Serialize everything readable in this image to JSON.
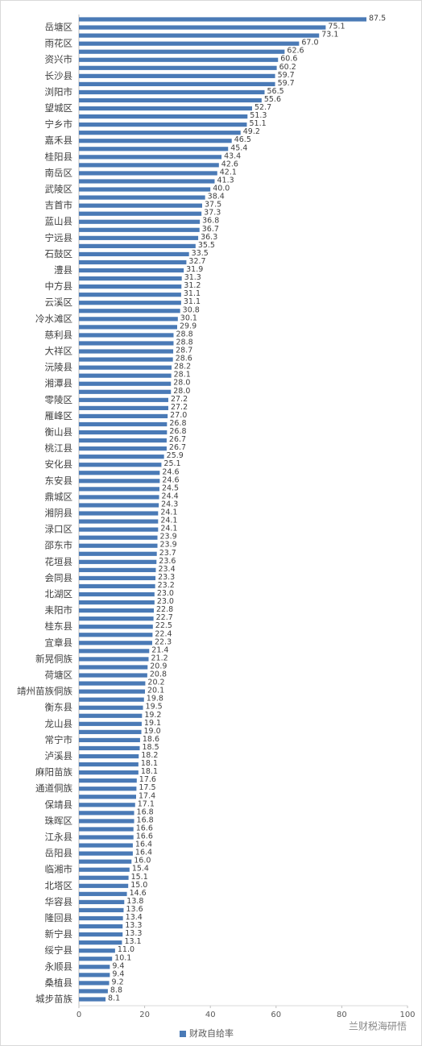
{
  "chart_data": {
    "type": "barh",
    "categories": [
      null,
      "岳塘区",
      null,
      "雨花区",
      null,
      "资兴市",
      null,
      "长沙县",
      null,
      "浏阳市",
      null,
      "望城区",
      null,
      "宁乡市",
      null,
      "嘉禾县",
      null,
      "桂阳县",
      null,
      "南岳区",
      null,
      "武陵区",
      null,
      "吉首市",
      null,
      "蓝山县",
      null,
      "宁远县",
      null,
      "石鼓区",
      null,
      "澧县",
      null,
      "中方县",
      null,
      "云溪区",
      null,
      "冷水滩区",
      null,
      "慈利县",
      null,
      "大祥区",
      null,
      "沅陵县",
      null,
      "湘潭县",
      null,
      "零陵区",
      null,
      "雁峰区",
      null,
      "衡山县",
      null,
      "桃江县",
      null,
      "安化县",
      null,
      "东安县",
      null,
      "鼎城区",
      null,
      "湘阴县",
      null,
      "渌口区",
      null,
      "邵东市",
      null,
      "花垣县",
      null,
      "会同县",
      null,
      "北湖区",
      null,
      "耒阳市",
      null,
      "桂东县",
      null,
      "宜章县",
      null,
      "新晃侗族",
      null,
      "荷塘区",
      null,
      "靖州苗族侗族",
      null,
      "衡东县",
      null,
      "龙山县",
      null,
      "常宁市",
      null,
      "泸溪县",
      null,
      "麻阳苗族",
      null,
      "通道侗族",
      null,
      "保靖县",
      null,
      "珠晖区",
      null,
      "江永县",
      null,
      "岳阳县",
      null,
      "临湘市",
      null,
      "北塔区",
      null,
      "华容县",
      null,
      "隆回县",
      null,
      "新宁县",
      null,
      "绥宁县",
      null,
      "永顺县",
      null,
      "桑植县",
      null,
      "城步苗族"
    ],
    "series": [
      {
        "name": "财政自给率",
        "color": "#4a7ab6",
        "values": [
          87.5,
          75.1,
          73.1,
          67.0,
          62.6,
          60.6,
          60.2,
          59.7,
          59.7,
          56.5,
          55.6,
          52.7,
          51.3,
          51.1,
          49.2,
          46.5,
          45.4,
          43.4,
          42.6,
          42.1,
          41.3,
          40.0,
          38.4,
          37.5,
          37.3,
          36.8,
          36.7,
          36.3,
          35.5,
          33.5,
          32.7,
          31.9,
          31.3,
          31.2,
          31.1,
          31.1,
          30.8,
          30.1,
          29.9,
          28.8,
          28.8,
          28.7,
          28.6,
          28.2,
          28.1,
          28.0,
          28.0,
          27.2,
          27.2,
          27.0,
          26.8,
          26.8,
          26.7,
          26.7,
          25.9,
          25.1,
          24.6,
          24.6,
          24.5,
          24.4,
          24.3,
          24.1,
          24.1,
          24.1,
          23.9,
          23.9,
          23.7,
          23.6,
          23.4,
          23.3,
          23.2,
          23.0,
          23.0,
          22.8,
          22.7,
          22.5,
          22.4,
          22.3,
          21.4,
          21.2,
          20.9,
          20.8,
          20.2,
          20.1,
          19.8,
          19.5,
          19.2,
          19.1,
          19.0,
          18.6,
          18.5,
          18.2,
          18.1,
          18.1,
          17.6,
          17.5,
          17.4,
          17.1,
          16.8,
          16.8,
          16.6,
          16.6,
          16.4,
          16.4,
          16.0,
          15.4,
          15.1,
          15.0,
          14.6,
          13.8,
          13.6,
          13.4,
          13.3,
          13.3,
          13.1,
          11.0,
          10.1,
          9.4,
          9.4,
          9.2,
          8.8,
          8.1
        ],
        "value_labels": [
          "87.5",
          "75.1",
          "73.1",
          "67.0",
          "62.6",
          "60.6",
          "60.2",
          "59.7",
          "59.7",
          "56.5",
          "55.6",
          "52.7",
          "51.3",
          "51.1",
          "49.2",
          "46.5",
          "45.4",
          "43.4",
          "42.6",
          "42.1",
          "41.3",
          "40.0",
          "38.4",
          "37.5",
          "37.3",
          "36.8",
          "36.7",
          "36.3",
          "35.5",
          "33.5",
          "32.7",
          "31.9",
          "31.3",
          "31.2",
          "31.1",
          "31.1",
          "30.8",
          "30.1",
          "29.9",
          "28.8",
          "28.8",
          "28.7",
          "28.6",
          "28.2",
          "28.1",
          "28.0",
          "28.0",
          "27.2",
          "27.2",
          "27.0",
          "26.8",
          "26.8",
          "26.7",
          "26.7",
          "25.9",
          "25.1",
          "24.6",
          "24.6",
          "24.5",
          "24.4",
          "24.3",
          "24.1",
          "24.1",
          "24.1",
          "23.9",
          "23.9",
          "23.7",
          "23.6",
          "23.4",
          "23.3",
          "23.2",
          "23.0",
          "23.0",
          "22.8",
          "22.7",
          "22.5",
          "22.4",
          "22.3",
          "21.4",
          "21.2",
          "20.9",
          "20.8",
          "20.2",
          "20.1",
          "19.8",
          "19.5",
          "19.2",
          "19.1",
          "19.0",
          "18.6",
          "18.5",
          "18.2",
          "18.1",
          "18.1",
          "17.6",
          "17.5",
          "17.4",
          "17.1",
          "16.8",
          "16.8",
          "16.6",
          "16.6",
          "16.4",
          "16.4",
          "16.0",
          "15.4",
          "15.1",
          "15.0",
          "14.6",
          "13.8",
          "13.6",
          "13.4",
          "13.3",
          "13.3",
          "13.1",
          "11.0",
          "10.1",
          "9.4",
          "9.4",
          "9.2",
          "8.8",
          "8.1"
        ]
      }
    ],
    "xlim": [
      0,
      100
    ],
    "xticks": [
      0,
      20,
      40,
      60,
      80,
      100
    ],
    "grid": false,
    "legend": "bottom",
    "watermark": "兰财税海研悟"
  }
}
